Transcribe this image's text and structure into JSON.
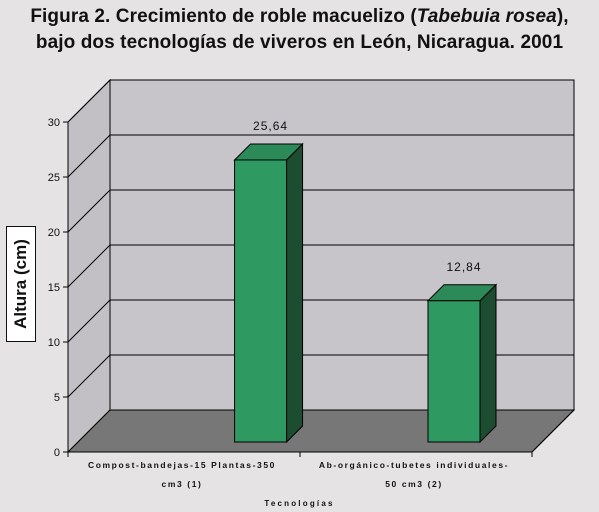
{
  "title": {
    "line1_prefix": "Figura 2. Crecimiento de roble macuelizo (",
    "line1_italic": "Tabebuia rosea",
    "line1_suffix": "),",
    "line2": "bajo dos tecnologías de viveros en León, Nicaragua. 2001"
  },
  "chart_data": {
    "type": "bar",
    "categories": [
      "Compost-bandejas-15 Plantas-350 cm3 (1)",
      "Ab-orgánico-tubetes individuales-50 cm3 (2)"
    ],
    "category_label_lines": [
      [
        "Compost-bandejas-15 Plantas-350",
        "cm3 (1)"
      ],
      [
        "Ab-orgánico-tubetes individuales-",
        "50 cm3 (2)"
      ]
    ],
    "values": [
      25.64,
      12.84
    ],
    "data_labels": [
      "25,64",
      "12,84"
    ],
    "xlabel": "Tecnologías",
    "ylabel": "Altura (cm)",
    "ylim": [
      0,
      30
    ],
    "yticks": [
      0,
      5,
      10,
      15,
      20,
      25,
      30
    ],
    "grid": true,
    "three_d": true,
    "colors": {
      "bar_front": "#2e9a62",
      "bar_side": "#1d4d31",
      "bar_top": "#2c8a58",
      "wall": "#c8c5ca",
      "wall_side": "#c3c0c5",
      "floor": "#777777",
      "background": "#e6e3e4"
    }
  }
}
